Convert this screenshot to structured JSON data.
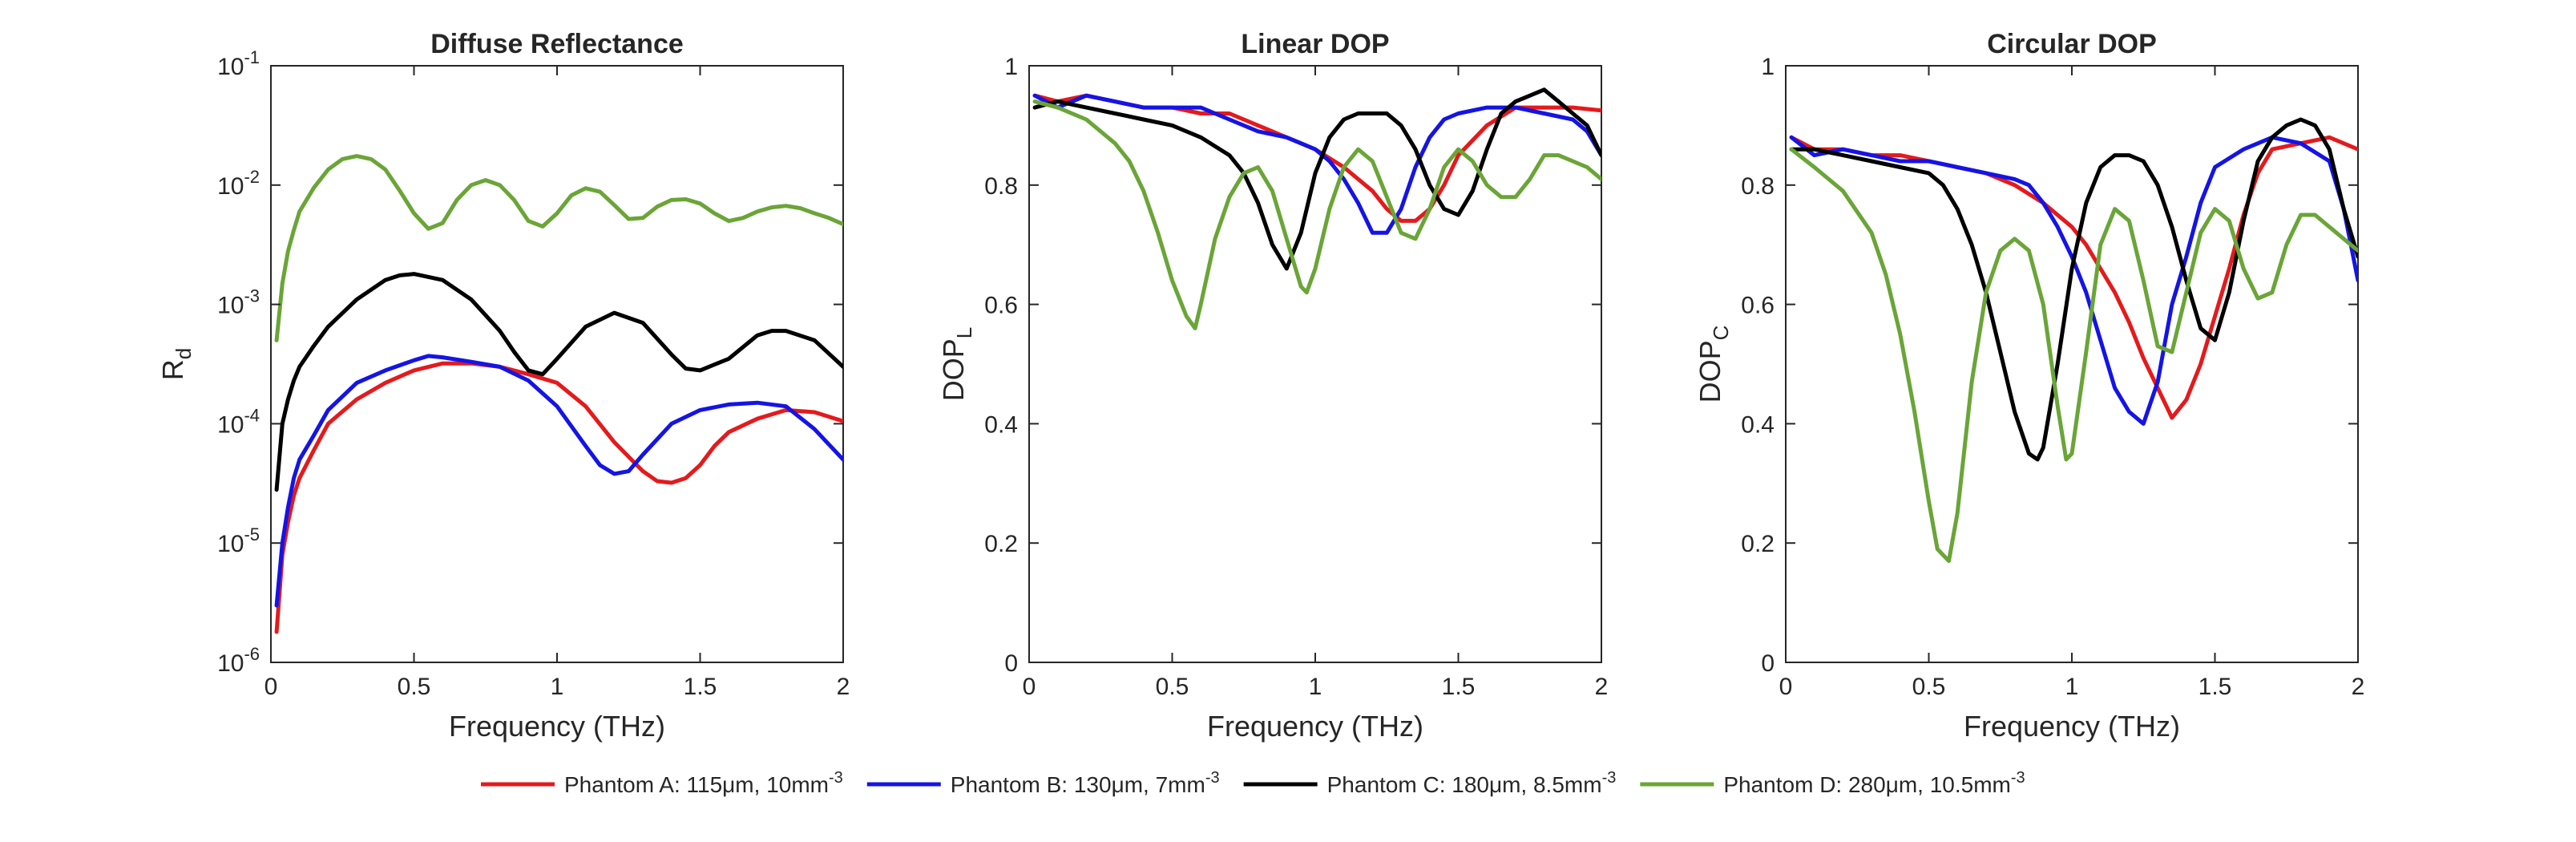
{
  "colors": {
    "red": "#e41a1c",
    "blue": "#1414e6",
    "black": "#000000",
    "green": "#6aa537",
    "axis": "#262626"
  },
  "legend": {
    "placement": "bottom-center",
    "entries": [
      {
        "name": "Phantom A: 115μm, 10mm",
        "sup": "-3",
        "color": "#e41a1c"
      },
      {
        "name": "Phantom B: 130μm, 7mm",
        "sup": "-3",
        "color": "#1414e6"
      },
      {
        "name": "Phantom C: 180μm, 8.5mm",
        "sup": "-3",
        "color": "#000000"
      },
      {
        "name": "Phantom D: 280μm, 10.5mm",
        "sup": "-3",
        "color": "#6aa537"
      }
    ]
  },
  "chart_data": [
    {
      "type": "line",
      "title": "Diffuse Reflectance",
      "xlabel": "Frequency (THz)",
      "ylabel": "R",
      "ylabel_sub": "d",
      "xlim": [
        0,
        2
      ],
      "ylim": [
        1e-06,
        0.1
      ],
      "yscale": "log",
      "grid": false,
      "xticks": [
        0,
        0.5,
        1,
        1.5,
        2
      ],
      "xtick_labels": [
        "0",
        "0.5",
        "1",
        "1.5",
        "2"
      ],
      "yticks": [
        1e-06,
        1e-05,
        0.0001,
        0.001,
        0.01,
        0.1
      ],
      "ytick_labels": [
        {
          "base": "10",
          "exp": "-6"
        },
        {
          "base": "10",
          "exp": "-5"
        },
        {
          "base": "10",
          "exp": "-4"
        },
        {
          "base": "10",
          "exp": "-3"
        },
        {
          "base": "10",
          "exp": "-2"
        },
        {
          "base": "10",
          "exp": "-1"
        }
      ],
      "series": [
        {
          "name": "Phantom A: 115μm, 10mm-3",
          "color": "#e41a1c",
          "x": [
            0.02,
            0.04,
            0.06,
            0.08,
            0.1,
            0.15,
            0.2,
            0.3,
            0.4,
            0.5,
            0.6,
            0.7,
            0.8,
            0.9,
            1.0,
            1.1,
            1.2,
            1.3,
            1.35,
            1.4,
            1.45,
            1.5,
            1.55,
            1.6,
            1.7,
            1.8,
            1.9,
            2.0
          ],
          "y": [
            1.8e-06,
            8e-06,
            1.5e-05,
            2.5e-05,
            3.5e-05,
            6e-05,
            0.0001,
            0.00016,
            0.00022,
            0.00028,
            0.00032,
            0.00032,
            0.0003,
            0.00026,
            0.00022,
            0.00014,
            7e-05,
            4e-05,
            3.3e-05,
            3.2e-05,
            3.5e-05,
            4.5e-05,
            6.5e-05,
            8.5e-05,
            0.00011,
            0.00013,
            0.000125,
            0.000105
          ]
        },
        {
          "name": "Phantom B: 130μm, 7mm-3",
          "color": "#1414e6",
          "x": [
            0.02,
            0.04,
            0.06,
            0.08,
            0.1,
            0.15,
            0.2,
            0.3,
            0.4,
            0.5,
            0.55,
            0.6,
            0.7,
            0.8,
            0.9,
            1.0,
            1.1,
            1.15,
            1.2,
            1.25,
            1.3,
            1.4,
            1.5,
            1.6,
            1.7,
            1.8,
            1.9,
            2.0
          ],
          "y": [
            3e-06,
            1e-05,
            2e-05,
            3.5e-05,
            5e-05,
            8e-05,
            0.00013,
            0.00022,
            0.00028,
            0.00034,
            0.00037,
            0.00036,
            0.00033,
            0.0003,
            0.00023,
            0.00014,
            6.5e-05,
            4.5e-05,
            3.8e-05,
            4e-05,
            5.5e-05,
            0.0001,
            0.00013,
            0.000145,
            0.00015,
            0.00014,
            9e-05,
            5e-05
          ]
        },
        {
          "name": "Phantom C: 180μm, 8.5mm-3",
          "color": "#000000",
          "x": [
            0.02,
            0.04,
            0.06,
            0.08,
            0.1,
            0.15,
            0.2,
            0.3,
            0.4,
            0.45,
            0.5,
            0.6,
            0.7,
            0.8,
            0.85,
            0.9,
            0.95,
            1.0,
            1.1,
            1.2,
            1.3,
            1.4,
            1.45,
            1.5,
            1.6,
            1.7,
            1.75,
            1.8,
            1.9,
            2.0
          ],
          "y": [
            2.8e-05,
            0.0001,
            0.00016,
            0.00023,
            0.0003,
            0.00045,
            0.00065,
            0.0011,
            0.0016,
            0.00175,
            0.0018,
            0.0016,
            0.0011,
            0.0006,
            0.0004,
            0.00028,
            0.00026,
            0.00035,
            0.00065,
            0.00085,
            0.0007,
            0.00038,
            0.00029,
            0.00028,
            0.00035,
            0.00055,
            0.0006,
            0.0006,
            0.0005,
            0.0003
          ]
        },
        {
          "name": "Phantom D: 280μm, 10.5mm-3",
          "color": "#6aa537",
          "x": [
            0.02,
            0.04,
            0.06,
            0.08,
            0.1,
            0.15,
            0.2,
            0.25,
            0.3,
            0.35,
            0.4,
            0.45,
            0.5,
            0.55,
            0.6,
            0.65,
            0.7,
            0.75,
            0.8,
            0.85,
            0.9,
            0.95,
            1.0,
            1.05,
            1.1,
            1.15,
            1.2,
            1.25,
            1.3,
            1.35,
            1.4,
            1.45,
            1.5,
            1.55,
            1.6,
            1.65,
            1.7,
            1.75,
            1.8,
            1.85,
            1.9,
            1.95,
            2.0
          ],
          "y": [
            0.0005,
            0.0015,
            0.0028,
            0.0042,
            0.006,
            0.0095,
            0.0135,
            0.0165,
            0.0175,
            0.0165,
            0.0135,
            0.009,
            0.0058,
            0.0043,
            0.0048,
            0.0075,
            0.01,
            0.011,
            0.01,
            0.0075,
            0.005,
            0.0045,
            0.0058,
            0.0082,
            0.0094,
            0.0088,
            0.0068,
            0.0052,
            0.0053,
            0.0066,
            0.0075,
            0.0076,
            0.007,
            0.0058,
            0.005,
            0.0053,
            0.006,
            0.0065,
            0.0067,
            0.0064,
            0.0058,
            0.0053,
            0.0047
          ]
        }
      ]
    },
    {
      "type": "line",
      "title": "Linear DOP",
      "xlabel": "Frequency (THz)",
      "ylabel": "DOP",
      "ylabel_sub": "L",
      "xlim": [
        0,
        2
      ],
      "ylim": [
        0,
        1
      ],
      "grid": false,
      "xticks": [
        0,
        0.5,
        1,
        1.5,
        2
      ],
      "xtick_labels": [
        "0",
        "0.5",
        "1",
        "1.5",
        "2"
      ],
      "yticks": [
        0,
        0.2,
        0.4,
        0.6,
        0.8,
        1
      ],
      "ytick_labels": [
        "0",
        "0.2",
        "0.4",
        "0.6",
        "0.8",
        "1"
      ],
      "series": [
        {
          "name": "Phantom A: 115μm, 10mm-3",
          "color": "#e41a1c",
          "x": [
            0.02,
            0.1,
            0.2,
            0.3,
            0.4,
            0.5,
            0.6,
            0.7,
            0.8,
            0.9,
            1.0,
            1.1,
            1.2,
            1.25,
            1.3,
            1.35,
            1.4,
            1.45,
            1.5,
            1.6,
            1.7,
            1.8,
            1.9,
            2.0
          ],
          "y": [
            0.95,
            0.94,
            0.95,
            0.94,
            0.93,
            0.93,
            0.92,
            0.92,
            0.9,
            0.88,
            0.86,
            0.83,
            0.79,
            0.76,
            0.74,
            0.74,
            0.76,
            0.8,
            0.85,
            0.9,
            0.93,
            0.93,
            0.93,
            0.925
          ]
        },
        {
          "name": "Phantom B: 130μm, 7mm-3",
          "color": "#1414e6",
          "x": [
            0.02,
            0.1,
            0.2,
            0.3,
            0.4,
            0.5,
            0.6,
            0.7,
            0.8,
            0.9,
            0.95,
            1.0,
            1.05,
            1.1,
            1.15,
            1.2,
            1.25,
            1.3,
            1.35,
            1.4,
            1.45,
            1.5,
            1.6,
            1.7,
            1.8,
            1.9,
            1.95,
            2.0
          ],
          "y": [
            0.95,
            0.93,
            0.95,
            0.94,
            0.93,
            0.93,
            0.93,
            0.91,
            0.89,
            0.88,
            0.87,
            0.86,
            0.84,
            0.81,
            0.77,
            0.72,
            0.72,
            0.76,
            0.83,
            0.88,
            0.91,
            0.92,
            0.93,
            0.93,
            0.92,
            0.91,
            0.89,
            0.85
          ]
        },
        {
          "name": "Phantom C: 180μm, 8.5mm-3",
          "color": "#000000",
          "x": [
            0.02,
            0.1,
            0.2,
            0.3,
            0.4,
            0.5,
            0.6,
            0.7,
            0.75,
            0.8,
            0.85,
            0.9,
            0.95,
            1.0,
            1.05,
            1.1,
            1.15,
            1.2,
            1.25,
            1.3,
            1.35,
            1.4,
            1.45,
            1.5,
            1.55,
            1.6,
            1.65,
            1.7,
            1.75,
            1.8,
            1.85,
            1.9,
            1.95,
            2.0
          ],
          "y": [
            0.93,
            0.94,
            0.93,
            0.92,
            0.91,
            0.9,
            0.88,
            0.85,
            0.82,
            0.77,
            0.7,
            0.66,
            0.72,
            0.82,
            0.88,
            0.91,
            0.92,
            0.92,
            0.92,
            0.9,
            0.86,
            0.8,
            0.76,
            0.75,
            0.79,
            0.86,
            0.92,
            0.94,
            0.95,
            0.96,
            0.94,
            0.92,
            0.9,
            0.85
          ]
        },
        {
          "name": "Phantom D: 280μm, 10.5mm-3",
          "color": "#6aa537",
          "x": [
            0.02,
            0.1,
            0.2,
            0.3,
            0.35,
            0.4,
            0.45,
            0.5,
            0.55,
            0.58,
            0.6,
            0.65,
            0.7,
            0.75,
            0.8,
            0.85,
            0.9,
            0.95,
            0.97,
            1.0,
            1.05,
            1.1,
            1.15,
            1.2,
            1.25,
            1.3,
            1.35,
            1.4,
            1.45,
            1.5,
            1.55,
            1.6,
            1.65,
            1.7,
            1.75,
            1.8,
            1.85,
            1.9,
            1.95,
            2.0
          ],
          "y": [
            0.94,
            0.93,
            0.91,
            0.87,
            0.84,
            0.79,
            0.72,
            0.64,
            0.58,
            0.56,
            0.6,
            0.71,
            0.78,
            0.82,
            0.83,
            0.79,
            0.71,
            0.63,
            0.62,
            0.66,
            0.76,
            0.83,
            0.86,
            0.84,
            0.78,
            0.72,
            0.71,
            0.76,
            0.83,
            0.86,
            0.84,
            0.8,
            0.78,
            0.78,
            0.81,
            0.85,
            0.85,
            0.84,
            0.83,
            0.81
          ]
        }
      ]
    },
    {
      "type": "line",
      "title": "Circular DOP",
      "xlabel": "Frequency (THz)",
      "ylabel": "DOP",
      "ylabel_sub": "C",
      "xlim": [
        0,
        2
      ],
      "ylim": [
        0,
        1
      ],
      "grid": false,
      "xticks": [
        0,
        0.5,
        1,
        1.5,
        2
      ],
      "xtick_labels": [
        "0",
        "0.5",
        "1",
        "1.5",
        "2"
      ],
      "yticks": [
        0,
        0.2,
        0.4,
        0.6,
        0.8,
        1
      ],
      "ytick_labels": [
        "0",
        "0.2",
        "0.4",
        "0.6",
        "0.8",
        "1"
      ],
      "series": [
        {
          "name": "Phantom A: 115μm, 10mm-3",
          "color": "#e41a1c",
          "x": [
            0.02,
            0.1,
            0.2,
            0.3,
            0.4,
            0.5,
            0.6,
            0.7,
            0.8,
            0.9,
            1.0,
            1.05,
            1.1,
            1.15,
            1.2,
            1.25,
            1.3,
            1.35,
            1.4,
            1.45,
            1.5,
            1.55,
            1.6,
            1.65,
            1.7,
            1.8,
            1.9,
            2.0
          ],
          "y": [
            0.88,
            0.86,
            0.86,
            0.85,
            0.85,
            0.84,
            0.83,
            0.82,
            0.8,
            0.77,
            0.73,
            0.7,
            0.66,
            0.62,
            0.57,
            0.51,
            0.46,
            0.41,
            0.44,
            0.5,
            0.58,
            0.66,
            0.75,
            0.82,
            0.86,
            0.87,
            0.88,
            0.86
          ]
        },
        {
          "name": "Phantom B: 130μm, 7mm-3",
          "color": "#1414e6",
          "x": [
            0.02,
            0.1,
            0.2,
            0.3,
            0.4,
            0.5,
            0.6,
            0.7,
            0.8,
            0.85,
            0.9,
            0.95,
            1.0,
            1.05,
            1.1,
            1.15,
            1.2,
            1.25,
            1.3,
            1.35,
            1.4,
            1.45,
            1.5,
            1.6,
            1.7,
            1.8,
            1.9,
            1.95,
            2.0
          ],
          "y": [
            0.88,
            0.85,
            0.86,
            0.85,
            0.84,
            0.84,
            0.83,
            0.82,
            0.81,
            0.8,
            0.77,
            0.73,
            0.68,
            0.62,
            0.54,
            0.46,
            0.42,
            0.4,
            0.47,
            0.6,
            0.68,
            0.77,
            0.83,
            0.86,
            0.88,
            0.87,
            0.84,
            0.76,
            0.64
          ]
        },
        {
          "name": "Phantom C: 180μm, 8.5mm-3",
          "color": "#000000",
          "x": [
            0.02,
            0.1,
            0.2,
            0.3,
            0.4,
            0.5,
            0.55,
            0.6,
            0.65,
            0.7,
            0.75,
            0.8,
            0.85,
            0.88,
            0.9,
            0.95,
            1.0,
            1.05,
            1.1,
            1.15,
            1.2,
            1.25,
            1.3,
            1.35,
            1.4,
            1.45,
            1.5,
            1.55,
            1.6,
            1.65,
            1.7,
            1.75,
            1.8,
            1.85,
            1.9,
            1.95,
            2.0
          ],
          "y": [
            0.86,
            0.86,
            0.85,
            0.84,
            0.83,
            0.82,
            0.8,
            0.76,
            0.7,
            0.62,
            0.52,
            0.42,
            0.35,
            0.34,
            0.36,
            0.5,
            0.66,
            0.77,
            0.83,
            0.85,
            0.85,
            0.84,
            0.8,
            0.73,
            0.64,
            0.56,
            0.54,
            0.62,
            0.74,
            0.84,
            0.88,
            0.9,
            0.91,
            0.9,
            0.86,
            0.76,
            0.68
          ]
        },
        {
          "name": "Phantom D: 280μm, 10.5mm-3",
          "color": "#6aa537",
          "x": [
            0.02,
            0.1,
            0.2,
            0.3,
            0.35,
            0.4,
            0.45,
            0.5,
            0.53,
            0.57,
            0.6,
            0.65,
            0.7,
            0.75,
            0.8,
            0.85,
            0.9,
            0.95,
            0.98,
            1.0,
            1.05,
            1.1,
            1.15,
            1.2,
            1.25,
            1.3,
            1.35,
            1.4,
            1.45,
            1.5,
            1.55,
            1.6,
            1.65,
            1.7,
            1.75,
            1.8,
            1.85,
            1.9,
            1.95,
            2.0
          ],
          "y": [
            0.86,
            0.83,
            0.79,
            0.72,
            0.65,
            0.55,
            0.42,
            0.27,
            0.19,
            0.17,
            0.25,
            0.47,
            0.62,
            0.69,
            0.71,
            0.69,
            0.6,
            0.43,
            0.34,
            0.35,
            0.52,
            0.7,
            0.76,
            0.74,
            0.64,
            0.53,
            0.52,
            0.62,
            0.72,
            0.76,
            0.74,
            0.66,
            0.61,
            0.62,
            0.7,
            0.75,
            0.75,
            0.73,
            0.71,
            0.69
          ]
        }
      ]
    }
  ]
}
